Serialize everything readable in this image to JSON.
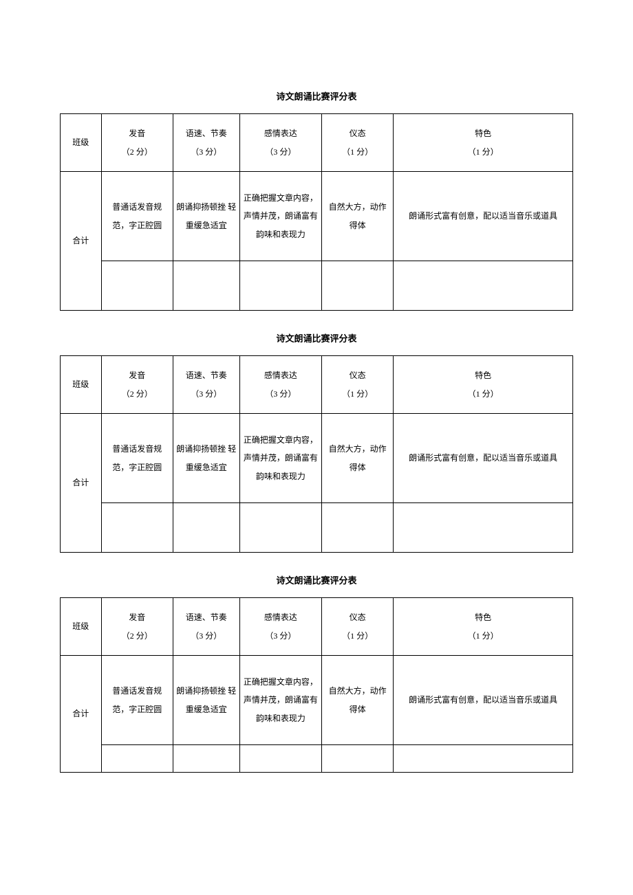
{
  "title": "诗文朗诵比赛评分表",
  "labels": {
    "class": "班级",
    "total": "合计"
  },
  "columns": [
    {
      "header": "发音",
      "score": "（2 分）",
      "desc": "普通话发音规范，字正腔圆"
    },
    {
      "header": "语速、节奏",
      "score": "（3 分）",
      "desc": "朗诵抑扬顿挫 轻重缓急适宜"
    },
    {
      "header": "感情表达",
      "score": "（3 分）",
      "desc": "正确把握文章内容，声情并茂，朗诵富有韵味和表现力"
    },
    {
      "header": "仪态",
      "score": "（1 分）",
      "desc": "自然大方，动作得体"
    },
    {
      "header": "特色",
      "score": "（1 分）",
      "desc": "朗诵形式富有创意，配以适当音乐或道具"
    }
  ]
}
